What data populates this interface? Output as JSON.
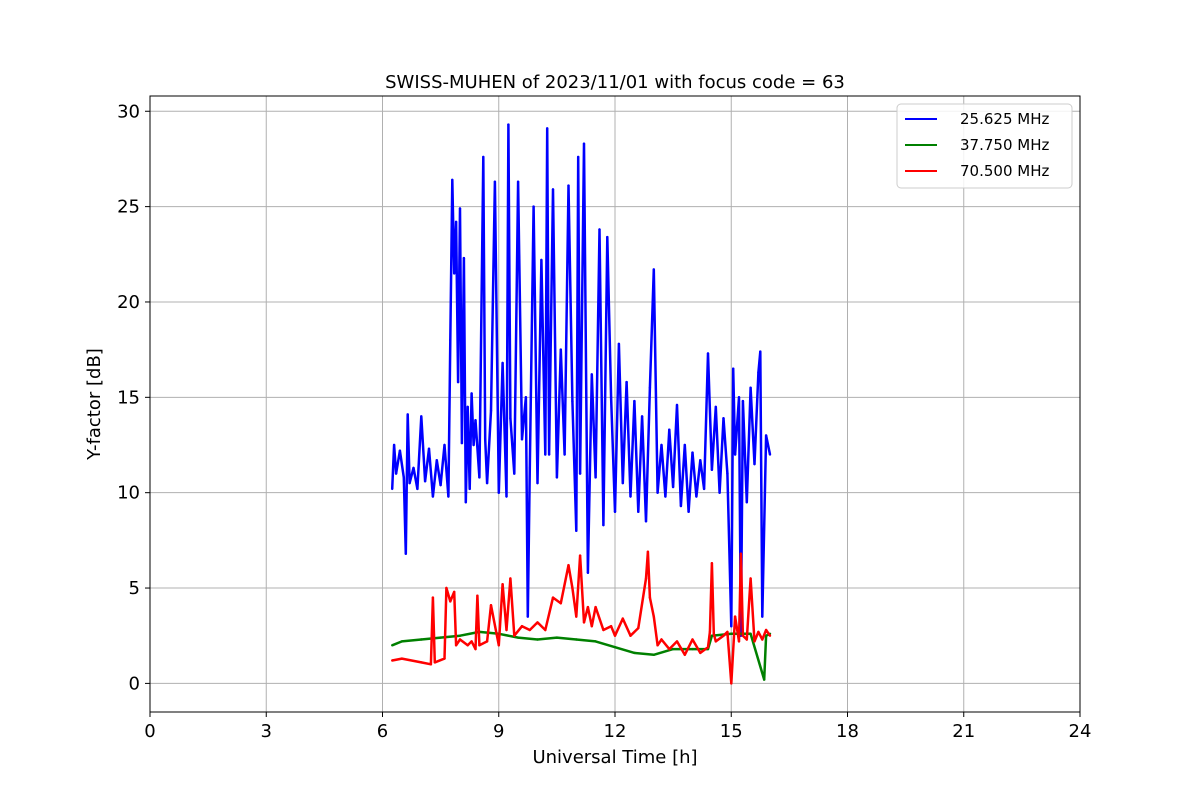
{
  "chart_data": {
    "type": "line",
    "title": "SWISS-MUHEN of 2023/11/01 with focus code = 63",
    "xlabel": "Universal Time [h]",
    "ylabel": "Y-factor [dB]",
    "xlim": [
      0,
      24
    ],
    "ylim": [
      -1.5,
      30.8
    ],
    "xticks": [
      0,
      3,
      6,
      9,
      12,
      15,
      18,
      21,
      24
    ],
    "yticks": [
      0,
      5,
      10,
      15,
      20,
      25,
      30
    ],
    "grid": true,
    "legend_position": "top-right",
    "series": [
      {
        "name": "25.625 MHz",
        "color": "#0000ff",
        "x": [
          6.25,
          6.3,
          6.35,
          6.45,
          6.55,
          6.6,
          6.65,
          6.7,
          6.8,
          6.9,
          7.0,
          7.1,
          7.2,
          7.3,
          7.4,
          7.5,
          7.6,
          7.7,
          7.75,
          7.8,
          7.85,
          7.9,
          7.95,
          8.0,
          8.05,
          8.1,
          8.15,
          8.2,
          8.25,
          8.3,
          8.35,
          8.4,
          8.5,
          8.6,
          8.65,
          8.7,
          8.8,
          8.9,
          9.0,
          9.1,
          9.2,
          9.25,
          9.3,
          9.4,
          9.5,
          9.6,
          9.7,
          9.75,
          9.8,
          9.9,
          10.0,
          10.1,
          10.2,
          10.25,
          10.3,
          10.4,
          10.5,
          10.6,
          10.7,
          10.8,
          10.9,
          11.0,
          11.05,
          11.1,
          11.2,
          11.3,
          11.4,
          11.5,
          11.6,
          11.7,
          11.8,
          11.9,
          12.0,
          12.1,
          12.2,
          12.3,
          12.4,
          12.5,
          12.6,
          12.7,
          12.8,
          12.9,
          13.0,
          13.1,
          13.2,
          13.3,
          13.4,
          13.5,
          13.6,
          13.7,
          13.8,
          13.9,
          14.0,
          14.1,
          14.2,
          14.3,
          14.4,
          14.5,
          14.6,
          14.7,
          14.8,
          14.9,
          15.0,
          15.05,
          15.1,
          15.2,
          15.25,
          15.3,
          15.4,
          15.5,
          15.6,
          15.7,
          15.75,
          15.8,
          15.9,
          16.0
        ],
        "values": [
          10.2,
          12.5,
          11.0,
          12.2,
          10.8,
          6.8,
          14.1,
          10.5,
          11.3,
          10.2,
          14.0,
          10.6,
          12.3,
          9.8,
          11.7,
          10.4,
          12.5,
          9.8,
          18.0,
          26.4,
          21.5,
          24.2,
          15.8,
          24.9,
          12.6,
          22.3,
          9.5,
          14.5,
          10.2,
          15.2,
          12.5,
          13.8,
          10.8,
          27.6,
          12.8,
          10.5,
          14.3,
          26.3,
          10.0,
          16.8,
          9.8,
          29.3,
          13.9,
          11.0,
          26.3,
          12.8,
          15.0,
          3.5,
          11.3,
          25.0,
          10.5,
          22.2,
          12.0,
          29.1,
          12.0,
          25.9,
          10.8,
          17.5,
          12.0,
          26.1,
          14.8,
          8.0,
          27.6,
          11.0,
          28.3,
          5.8,
          16.2,
          10.8,
          23.8,
          8.3,
          23.4,
          15.0,
          9.0,
          17.8,
          10.5,
          15.8,
          9.8,
          14.8,
          9.0,
          14.0,
          8.5,
          15.5,
          21.7,
          10.0,
          12.5,
          9.8,
          13.3,
          10.3,
          14.6,
          9.3,
          12.5,
          9.0,
          12.1,
          9.8,
          11.7,
          10.2,
          17.3,
          11.2,
          14.5,
          10.0,
          13.9,
          11.0,
          3.0,
          16.5,
          12.0,
          15.0,
          2.5,
          14.8,
          9.5,
          15.5,
          11.5,
          16.3,
          17.4,
          3.5,
          13.0,
          12.0
        ]
      },
      {
        "name": "37.750 MHz",
        "color": "#008000",
        "x": [
          6.25,
          6.5,
          7.0,
          7.5,
          8.0,
          8.5,
          9.0,
          9.5,
          10.0,
          10.5,
          11.0,
          11.5,
          12.0,
          12.5,
          13.0,
          13.5,
          14.0,
          14.4,
          14.5,
          15.0,
          15.5,
          15.85,
          15.9,
          16.0
        ],
        "values": [
          2.0,
          2.2,
          2.3,
          2.4,
          2.5,
          2.7,
          2.6,
          2.4,
          2.3,
          2.4,
          2.3,
          2.2,
          1.9,
          1.6,
          1.5,
          1.8,
          1.8,
          1.8,
          2.5,
          2.6,
          2.6,
          0.2,
          2.5,
          2.6
        ]
      },
      {
        "name": "70.500 MHz",
        "color": "#ff0000",
        "x": [
          6.25,
          6.5,
          7.0,
          7.25,
          7.3,
          7.35,
          7.6,
          7.65,
          7.75,
          7.85,
          7.9,
          8.0,
          8.2,
          8.3,
          8.4,
          8.45,
          8.5,
          8.7,
          8.8,
          9.0,
          9.1,
          9.2,
          9.3,
          9.4,
          9.6,
          9.8,
          10.0,
          10.2,
          10.4,
          10.6,
          10.8,
          10.9,
          11.0,
          11.1,
          11.2,
          11.3,
          11.4,
          11.5,
          11.7,
          11.9,
          12.0,
          12.2,
          12.4,
          12.6,
          12.8,
          12.85,
          12.9,
          13.0,
          13.1,
          13.2,
          13.4,
          13.6,
          13.8,
          14.0,
          14.2,
          14.4,
          14.45,
          14.5,
          14.55,
          14.6,
          14.8,
          14.9,
          15.0,
          15.1,
          15.2,
          15.25,
          15.3,
          15.4,
          15.5,
          15.6,
          15.7,
          15.8,
          15.9,
          16.0
        ],
        "values": [
          1.2,
          1.3,
          1.1,
          1.0,
          4.5,
          1.1,
          1.3,
          5.0,
          4.3,
          4.8,
          2.0,
          2.3,
          2.0,
          2.2,
          1.8,
          4.6,
          2.0,
          2.2,
          4.1,
          2.0,
          5.2,
          2.8,
          5.5,
          2.5,
          3.0,
          2.8,
          3.2,
          2.8,
          4.5,
          4.2,
          6.2,
          5.0,
          3.5,
          6.7,
          3.2,
          4.0,
          3.0,
          4.0,
          2.8,
          3.0,
          2.5,
          3.4,
          2.5,
          2.9,
          5.5,
          6.9,
          4.5,
          3.5,
          2.0,
          2.3,
          1.8,
          2.2,
          1.5,
          2.3,
          1.6,
          1.9,
          2.7,
          6.3,
          2.6,
          2.2,
          2.5,
          2.7,
          0.0,
          3.5,
          2.2,
          6.8,
          2.5,
          2.3,
          5.5,
          2.2,
          2.7,
          2.3,
          2.8,
          2.5
        ]
      }
    ]
  }
}
